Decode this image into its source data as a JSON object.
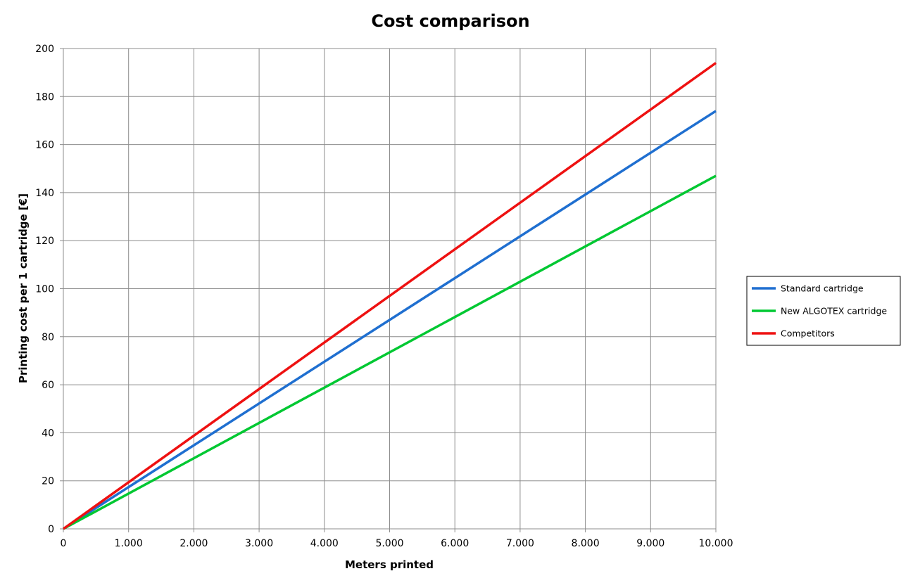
{
  "chart_data": {
    "type": "line",
    "title": "Cost comparison",
    "xlabel": "Meters printed",
    "ylabel": "Printing cost per 1 cartridge [€]",
    "xlim": [
      0,
      10000
    ],
    "ylim": [
      0,
      200
    ],
    "grid": true,
    "legend_position": "right",
    "x": [
      0,
      10000
    ],
    "x_tick_labels": [
      "0",
      "1.000",
      "2.000",
      "3.000",
      "4.000",
      "5.000",
      "6.000",
      "7.000",
      "8.000",
      "9.000",
      "10.000"
    ],
    "x_ticks": [
      0,
      1000,
      2000,
      3000,
      4000,
      5000,
      6000,
      7000,
      8000,
      9000,
      10000
    ],
    "y_ticks": [
      0,
      20,
      40,
      60,
      80,
      100,
      120,
      140,
      160,
      180,
      200
    ],
    "y_tick_labels": [
      "0",
      "20",
      "40",
      "60",
      "80",
      "100",
      "120",
      "140",
      "160",
      "180",
      "200"
    ],
    "series": [
      {
        "name": "Standard cartridge",
        "color": "#1f6fd0",
        "values": [
          0,
          174
        ]
      },
      {
        "name": "New ALGOTEX cartridge",
        "color": "#00c832",
        "values": [
          0,
          147
        ]
      },
      {
        "name": "Competitors",
        "color": "#ee1111",
        "values": [
          0,
          194
        ]
      }
    ]
  }
}
